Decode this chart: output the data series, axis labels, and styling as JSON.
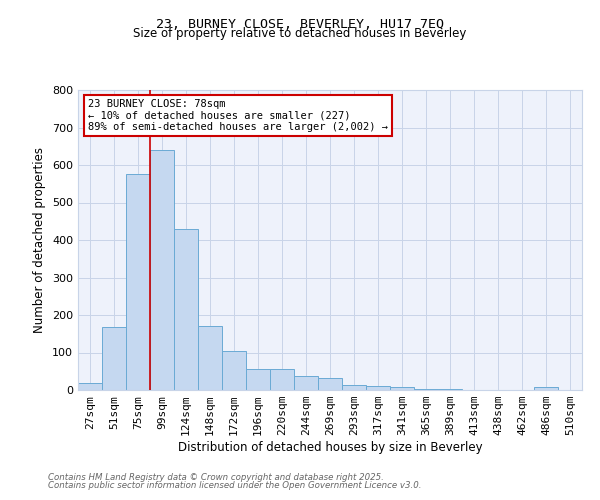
{
  "title_line1": "23, BURNEY CLOSE, BEVERLEY, HU17 7EQ",
  "title_line2": "Size of property relative to detached houses in Beverley",
  "xlabel": "Distribution of detached houses by size in Beverley",
  "ylabel": "Number of detached properties",
  "categories": [
    "27sqm",
    "51sqm",
    "75sqm",
    "99sqm",
    "124sqm",
    "148sqm",
    "172sqm",
    "196sqm",
    "220sqm",
    "244sqm",
    "269sqm",
    "293sqm",
    "317sqm",
    "341sqm",
    "365sqm",
    "389sqm",
    "413sqm",
    "438sqm",
    "462sqm",
    "486sqm",
    "510sqm"
  ],
  "values": [
    20,
    168,
    575,
    640,
    430,
    170,
    105,
    57,
    55,
    38,
    32,
    14,
    10,
    8,
    4,
    3,
    1,
    1,
    0,
    7,
    0
  ],
  "bar_color": "#c5d8f0",
  "bar_edge_color": "#6aaad4",
  "grid_color": "#c8d4e8",
  "background_color": "#eef2fb",
  "vline_x_idx": 2,
  "vline_color": "#cc0000",
  "annotation_text": "23 BURNEY CLOSE: 78sqm\n← 10% of detached houses are smaller (227)\n89% of semi-detached houses are larger (2,002) →",
  "annotation_box_color": "#ffffff",
  "annotation_box_edge": "#cc0000",
  "ylim": [
    0,
    800
  ],
  "yticks": [
    0,
    100,
    200,
    300,
    400,
    500,
    600,
    700,
    800
  ],
  "footnote1": "Contains HM Land Registry data © Crown copyright and database right 2025.",
  "footnote2": "Contains public sector information licensed under the Open Government Licence v3.0."
}
